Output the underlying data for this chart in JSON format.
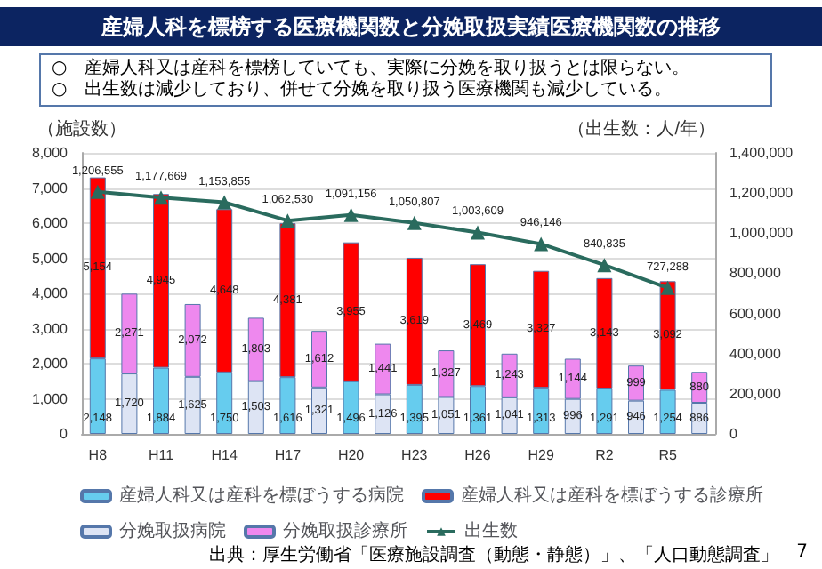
{
  "chart_data": {
    "type": "bar",
    "title": "産婦人科を標榜する医療機関数と分娩取扱実績医療機関数の推移",
    "subtitle": "○　産婦人科又は産科を標榜していても、実際に分娩を取り扱うとは限らない。\n○　出生数は減少しており、併せて分娩を取り扱う医療機関も減少している。",
    "ylabel": "（施設数）",
    "y2label": "（出生数：人/年）",
    "categories": [
      "H8",
      null,
      "H11",
      null,
      "H14",
      null,
      "H17",
      null,
      "H20",
      null,
      "H23",
      null,
      "H26",
      null,
      "H29",
      null,
      "R2",
      null,
      "R5",
      null
    ],
    "stacked": true,
    "series": [
      {
        "name": "産婦人科又は産科を標ぼうする病院",
        "color": "#66ccee",
        "values": [
          2148,
          null,
          1884,
          null,
          1750,
          null,
          1616,
          null,
          1496,
          null,
          1395,
          null,
          1361,
          null,
          1313,
          null,
          1291,
          null,
          1254,
          null
        ],
        "value_labels": [
          "2,148",
          null,
          "1,884",
          null,
          "1,750",
          null,
          "1,616",
          null,
          "1,496",
          null,
          "1,395",
          null,
          "1,361",
          null,
          "1,313",
          null,
          "1,291",
          null,
          "1,254",
          null
        ]
      },
      {
        "name": "産婦人科又は産科を標ぼうする診療所",
        "color": "#ff0000",
        "values": [
          5154,
          null,
          4945,
          null,
          4648,
          null,
          4381,
          null,
          3955,
          null,
          3619,
          null,
          3469,
          null,
          3327,
          null,
          3143,
          null,
          3092,
          null
        ],
        "value_labels": [
          "5,154",
          null,
          "4,945",
          null,
          "4,648",
          null,
          "4,381",
          null,
          "3,955",
          null,
          "3,619",
          null,
          "3,469",
          null,
          "3,327",
          null,
          "3,143",
          null,
          "3,092",
          null
        ]
      },
      {
        "name": "分娩取扱病院",
        "color": "#dde4f4",
        "values": [
          null,
          1720,
          null,
          1625,
          null,
          1503,
          null,
          1321,
          null,
          1126,
          null,
          1051,
          null,
          1041,
          null,
          996,
          null,
          946,
          null,
          886
        ],
        "value_labels": [
          null,
          "1,720",
          null,
          "1,625",
          null,
          "1,503",
          null,
          "1,321",
          null,
          "1,126",
          null,
          "1,051",
          null,
          "1,041",
          null,
          "996",
          null,
          "946",
          null,
          "886"
        ]
      },
      {
        "name": "分娩取扱診療所",
        "color": "#ee88ee",
        "values": [
          null,
          2271,
          null,
          2072,
          null,
          1803,
          null,
          1612,
          null,
          1441,
          null,
          1327,
          null,
          1243,
          null,
          1144,
          null,
          999,
          null,
          880
        ],
        "value_labels": [
          null,
          "2,271",
          null,
          "2,072",
          null,
          "1,803",
          null,
          "1,612",
          null,
          "1,441",
          null,
          "1,327",
          null,
          "1,243",
          null,
          "1,144",
          null,
          "999",
          null,
          "880"
        ]
      },
      {
        "name": "出生数",
        "color": "#2a6b5e",
        "type": "line",
        "axis": "y2",
        "marker": "triangle",
        "x": [
          "H8",
          "H11",
          "H14",
          "H17",
          "H20",
          "H23",
          "H26",
          "H29",
          "R2",
          "R5"
        ],
        "values": [
          1206555,
          1177669,
          1153855,
          1062530,
          1091156,
          1050807,
          1003609,
          946146,
          840835,
          727288
        ],
        "value_labels": [
          "1,206,555",
          "1,177,669",
          "1,153,855",
          "1,062,530",
          "1,091,156",
          "1,050,807",
          "1,003,609",
          "946,146",
          "840,835",
          "727,288"
        ]
      }
    ],
    "ylim": [
      0,
      8000
    ],
    "yticks": [
      {
        "value": 0,
        "label": "0"
      },
      {
        "value": 1000,
        "label": "1,000"
      },
      {
        "value": 2000,
        "label": "2,000"
      },
      {
        "value": 3000,
        "label": "3,000"
      },
      {
        "value": 4000,
        "label": "4,000"
      },
      {
        "value": 5000,
        "label": "5,000"
      },
      {
        "value": 6000,
        "label": "6,000"
      },
      {
        "value": 7000,
        "label": "7,000"
      },
      {
        "value": 8000,
        "label": "8,000"
      }
    ],
    "y2lim": [
      0,
      1400000
    ],
    "y2ticks": [
      {
        "value": 0,
        "label": "0"
      },
      {
        "value": 200000,
        "label": "200,000"
      },
      {
        "value": 400000,
        "label": "400,000"
      },
      {
        "value": 600000,
        "label": "600,000"
      },
      {
        "value": 800000,
        "label": "800,000"
      },
      {
        "value": 1000000,
        "label": "1,000,000"
      },
      {
        "value": 1200000,
        "label": "1,200,000"
      },
      {
        "value": 1400000,
        "label": "1,400,000"
      }
    ],
    "grid": "y",
    "legend": "bottom",
    "annotations": [
      "出典：厚生労働省「医療施設調査（動態・静態）」、「人口動態調査」",
      "7"
    ]
  }
}
